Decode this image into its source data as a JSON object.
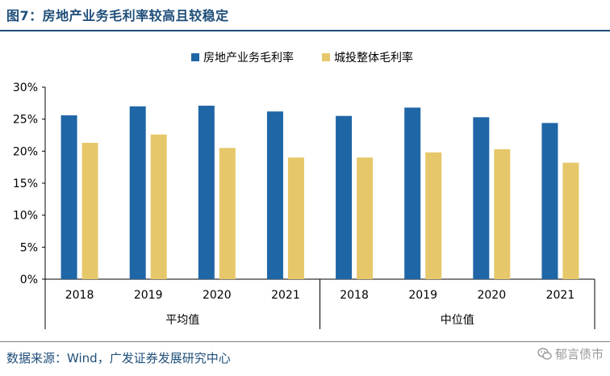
{
  "header": {
    "title": "图7：房地产业务毛利率较高且较稳定"
  },
  "footer": {
    "source": "数据来源：Wind，广发证券发展研究中心",
    "watermark": "郁言债市"
  },
  "chart_data": {
    "type": "bar",
    "groups": [
      "平均值",
      "中位值"
    ],
    "categories": [
      "2018",
      "2019",
      "2020",
      "2021",
      "2018",
      "2019",
      "2020",
      "2021"
    ],
    "series": [
      {
        "name": "房地产业务毛利率",
        "color": "#1f66a6",
        "values": [
          0.256,
          0.27,
          0.271,
          0.262,
          0.255,
          0.268,
          0.253,
          0.244
        ]
      },
      {
        "name": "城投整体毛利率",
        "color": "#e6c86a",
        "values": [
          0.213,
          0.226,
          0.205,
          0.19,
          0.19,
          0.198,
          0.203,
          0.182
        ]
      }
    ],
    "ylim": [
      0,
      0.3
    ],
    "yticks": [
      "0%",
      "5%",
      "10%",
      "15%",
      "20%",
      "25%",
      "30%"
    ],
    "legend_position": "top",
    "grid": false
  }
}
